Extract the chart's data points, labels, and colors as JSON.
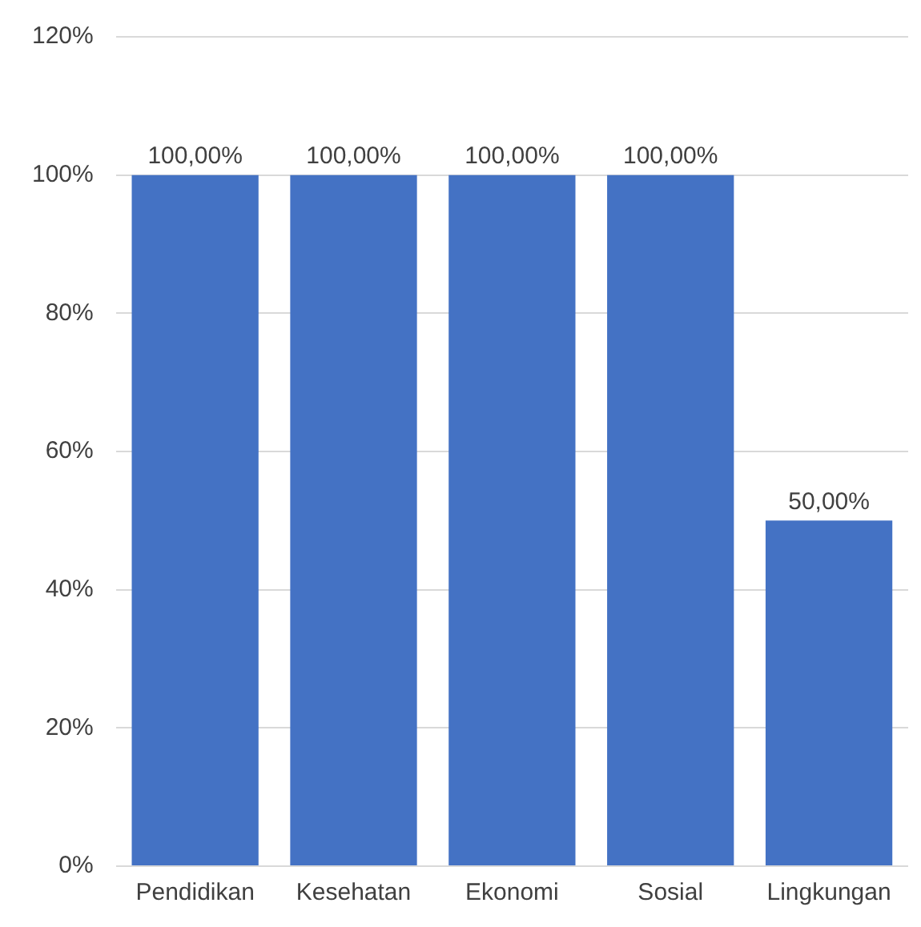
{
  "chart_data": {
    "type": "bar",
    "categories": [
      "Pendidikan",
      "Kesehatan",
      "Ekonomi",
      "Sosial",
      "Lingkungan"
    ],
    "values": [
      100,
      100,
      100,
      100,
      50
    ],
    "value_labels": [
      "100,00%",
      "100,00%",
      "100,00%",
      "100,00%",
      "50,00%"
    ],
    "color": "#4472c4",
    "ylim": [
      0,
      120
    ],
    "yticks": [
      {
        "value": 0,
        "label": "0%"
      },
      {
        "value": 20,
        "label": "20%"
      },
      {
        "value": 40,
        "label": "40%"
      },
      {
        "value": 60,
        "label": "60%"
      },
      {
        "value": 80,
        "label": "80%"
      },
      {
        "value": 100,
        "label": "100%"
      },
      {
        "value": 120,
        "label": "120%"
      }
    ],
    "grid": "y",
    "legend": false
  }
}
